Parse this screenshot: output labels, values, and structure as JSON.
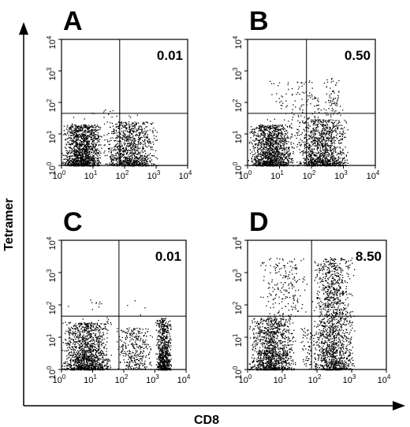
{
  "chart_data": {
    "type": "scatter",
    "xlabel": "CD8",
    "ylabel": "Tetramer",
    "xscale": "log",
    "yscale": "log",
    "xlim": [
      1,
      10000
    ],
    "ylim": [
      1,
      10000
    ],
    "xticks": [
      "10",
      "10",
      "10",
      "10",
      "10"
    ],
    "xtick_exponents": [
      "0",
      "1",
      "2",
      "3",
      "4"
    ],
    "yticks": [
      "10",
      "10",
      "10",
      "10",
      "10"
    ],
    "ytick_exponents": [
      "0",
      "1",
      "2",
      "3",
      "4"
    ],
    "gate": {
      "x": 70,
      "y": 45
    },
    "panels": [
      {
        "label": "A",
        "upper_right_percent": "0.01",
        "populations": [
          {
            "x_range": [
              1,
              20
            ],
            "y_range": [
              1,
              20
            ],
            "count": 1400
          },
          {
            "x_range": [
              20,
              1200
            ],
            "y_range": [
              1,
              25
            ],
            "count": 1000
          },
          {
            "x_range": [
              1,
              1200
            ],
            "y_range": [
              20,
              60
            ],
            "count": 18
          }
        ]
      },
      {
        "label": "B",
        "upper_right_percent": "0.50",
        "populations": [
          {
            "x_range": [
              1,
              30
            ],
            "y_range": [
              1,
              20
            ],
            "count": 1300
          },
          {
            "x_range": [
              30,
              1500
            ],
            "y_range": [
              1,
              30
            ],
            "count": 1100
          },
          {
            "x_range": [
              3,
              1000
            ],
            "y_range": [
              20,
              500
            ],
            "count": 130
          },
          {
            "x_range": [
              200,
              1000
            ],
            "y_range": [
              40,
              600
            ],
            "count": 60
          }
        ]
      },
      {
        "label": "C",
        "upper_right_percent": "0.01",
        "populations": [
          {
            "x_range": [
              1,
              40
            ],
            "y_range": [
              1,
              30
            ],
            "count": 1300
          },
          {
            "x_range": [
              50,
              900
            ],
            "y_range": [
              1,
              20
            ],
            "count": 320
          },
          {
            "x_range": [
              1000,
              3500
            ],
            "y_range": [
              1,
              40
            ],
            "count": 700
          },
          {
            "x_range": [
              1,
              1200
            ],
            "y_range": [
              30,
              150
            ],
            "count": 20
          }
        ]
      },
      {
        "label": "D",
        "upper_right_percent": "8.50",
        "populations": [
          {
            "x_range": [
              1,
              25
            ],
            "y_range": [
              1,
              40
            ],
            "count": 1200
          },
          {
            "x_range": [
              70,
              1200
            ],
            "y_range": [
              1,
              3000
            ],
            "count": 1500
          },
          {
            "x_range": [
              2,
              60
            ],
            "y_range": [
              40,
              3000
            ],
            "count": 200
          },
          {
            "x_range": [
              30,
              100
            ],
            "y_range": [
              1,
              20
            ],
            "count": 60
          }
        ]
      }
    ]
  }
}
